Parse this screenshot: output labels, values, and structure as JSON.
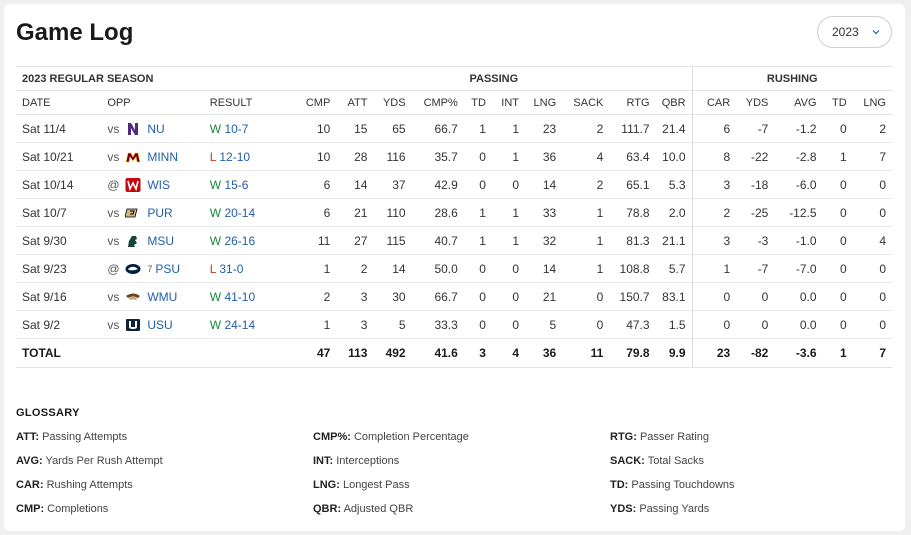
{
  "title": "Game Log",
  "year_select": {
    "value": "2023"
  },
  "season_label": "2023 REGULAR SEASON",
  "groups": {
    "passing": "PASSING",
    "rushing": "RUSHING"
  },
  "columns": [
    "DATE",
    "OPP",
    "RESULT",
    "CMP",
    "ATT",
    "YDS",
    "CMP%",
    "TD",
    "INT",
    "LNG",
    "SACK",
    "RTG",
    "QBR",
    "CAR",
    "YDS",
    "AVG",
    "TD",
    "LNG"
  ],
  "games": [
    {
      "date": "Sat 11/4",
      "ha": "vs",
      "rank": "",
      "opp": "NU",
      "logo": "northwestern-logo-icon",
      "wl": "W",
      "score": "10-7",
      "stats": [
        "10",
        "15",
        "65",
        "66.7",
        "1",
        "1",
        "23",
        "2",
        "111.7",
        "21.4",
        "6",
        "-7",
        "-1.2",
        "0",
        "2"
      ]
    },
    {
      "date": "Sat 10/21",
      "ha": "vs",
      "rank": "",
      "opp": "MINN",
      "logo": "minnesota-logo-icon",
      "wl": "L",
      "score": "12-10",
      "stats": [
        "10",
        "28",
        "116",
        "35.7",
        "0",
        "1",
        "36",
        "4",
        "63.4",
        "10.0",
        "8",
        "-22",
        "-2.8",
        "1",
        "7"
      ]
    },
    {
      "date": "Sat 10/14",
      "ha": "@",
      "rank": "",
      "opp": "WIS",
      "logo": "wisconsin-logo-icon",
      "wl": "W",
      "score": "15-6",
      "stats": [
        "6",
        "14",
        "37",
        "42.9",
        "0",
        "0",
        "14",
        "2",
        "65.1",
        "5.3",
        "3",
        "-18",
        "-6.0",
        "0",
        "0"
      ]
    },
    {
      "date": "Sat 10/7",
      "ha": "vs",
      "rank": "",
      "opp": "PUR",
      "logo": "purdue-logo-icon",
      "wl": "W",
      "score": "20-14",
      "stats": [
        "6",
        "21",
        "110",
        "28.6",
        "1",
        "1",
        "33",
        "1",
        "78.8",
        "2.0",
        "2",
        "-25",
        "-12.5",
        "0",
        "0"
      ]
    },
    {
      "date": "Sat 9/30",
      "ha": "vs",
      "rank": "",
      "opp": "MSU",
      "logo": "michigan-state-logo-icon",
      "wl": "W",
      "score": "26-16",
      "stats": [
        "11",
        "27",
        "115",
        "40.7",
        "1",
        "1",
        "32",
        "1",
        "81.3",
        "21.1",
        "3",
        "-3",
        "-1.0",
        "0",
        "4"
      ]
    },
    {
      "date": "Sat 9/23",
      "ha": "@",
      "rank": "7",
      "opp": "PSU",
      "logo": "penn-state-logo-icon",
      "wl": "L",
      "score": "31-0",
      "stats": [
        "1",
        "2",
        "14",
        "50.0",
        "0",
        "0",
        "14",
        "1",
        "108.8",
        "5.7",
        "1",
        "-7",
        "-7.0",
        "0",
        "0"
      ]
    },
    {
      "date": "Sat 9/16",
      "ha": "vs",
      "rank": "",
      "opp": "WMU",
      "logo": "western-michigan-logo-icon",
      "wl": "W",
      "score": "41-10",
      "stats": [
        "2",
        "3",
        "30",
        "66.7",
        "0",
        "0",
        "21",
        "0",
        "150.7",
        "83.1",
        "0",
        "0",
        "0.0",
        "0",
        "0"
      ]
    },
    {
      "date": "Sat 9/2",
      "ha": "vs",
      "rank": "",
      "opp": "USU",
      "logo": "utah-state-logo-icon",
      "wl": "W",
      "score": "24-14",
      "stats": [
        "1",
        "3",
        "5",
        "33.3",
        "0",
        "0",
        "5",
        "0",
        "47.3",
        "1.5",
        "0",
        "0",
        "0.0",
        "0",
        "0"
      ]
    }
  ],
  "total": {
    "label": "TOTAL",
    "stats": [
      "47",
      "113",
      "492",
      "41.6",
      "3",
      "4",
      "36",
      "11",
      "79.8",
      "9.9",
      "23",
      "-82",
      "-3.6",
      "1",
      "7"
    ]
  },
  "colors": {
    "win": "#1a8a3a",
    "loss": "#c0392b",
    "link": "#1f5ea8"
  },
  "glossary": {
    "title": "GLOSSARY",
    "items": [
      {
        "key": "ATT:",
        "text": "Passing Attempts"
      },
      {
        "key": "AVG:",
        "text": "Yards Per Rush Attempt"
      },
      {
        "key": "CAR:",
        "text": "Rushing Attempts"
      },
      {
        "key": "CMP:",
        "text": "Completions"
      },
      {
        "key": "CMP%:",
        "text": "Completion Percentage"
      },
      {
        "key": "INT:",
        "text": "Interceptions"
      },
      {
        "key": "LNG:",
        "text": "Longest Pass"
      },
      {
        "key": "QBR:",
        "text": "Adjusted QBR"
      },
      {
        "key": "RTG:",
        "text": "Passer Rating"
      },
      {
        "key": "SACK:",
        "text": "Total Sacks"
      },
      {
        "key": "TD:",
        "text": "Passing Touchdowns"
      },
      {
        "key": "YDS:",
        "text": "Passing Yards"
      }
    ]
  }
}
